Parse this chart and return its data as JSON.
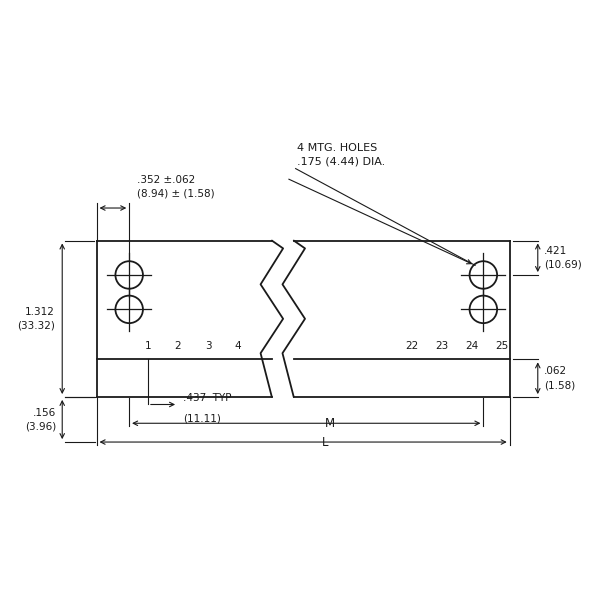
{
  "bg_color": "#ffffff",
  "line_color": "#1a1a1a",
  "text_color": "#1a1a1a",
  "figure_size": [
    6.0,
    6.0
  ],
  "dpi": 100,
  "annotations": {
    "mtg_holes_line1": "4 MTG. HOLES",
    "mtg_holes_line2": ".175 (4.44) DIA.",
    "top_dim_line1": ".352 ±.062",
    "top_dim_line2": "(8.94) ± (1.58)",
    "right_top_dim_line1": ".421",
    "right_top_dim_line2": "(10.69)",
    "left_height_line1": "1.312",
    "left_height_line2": "(33.32)",
    "right_bottom_dim_line1": ".062",
    "right_bottom_dim_line2": "(1.58)",
    "left_bottom_dim_line1": ".156",
    "left_bottom_dim_line2": "(3.96)",
    "pitch_dim_line1": ".437",
    "pitch_dim_line2": "(11.11)",
    "pitch_typ": "TYP",
    "M_label": "M",
    "L_label": "L",
    "pin_numbers_left": [
      "1",
      "2",
      "3",
      "4"
    ],
    "pin_numbers_right": [
      "22",
      "23",
      "24",
      "25"
    ]
  }
}
